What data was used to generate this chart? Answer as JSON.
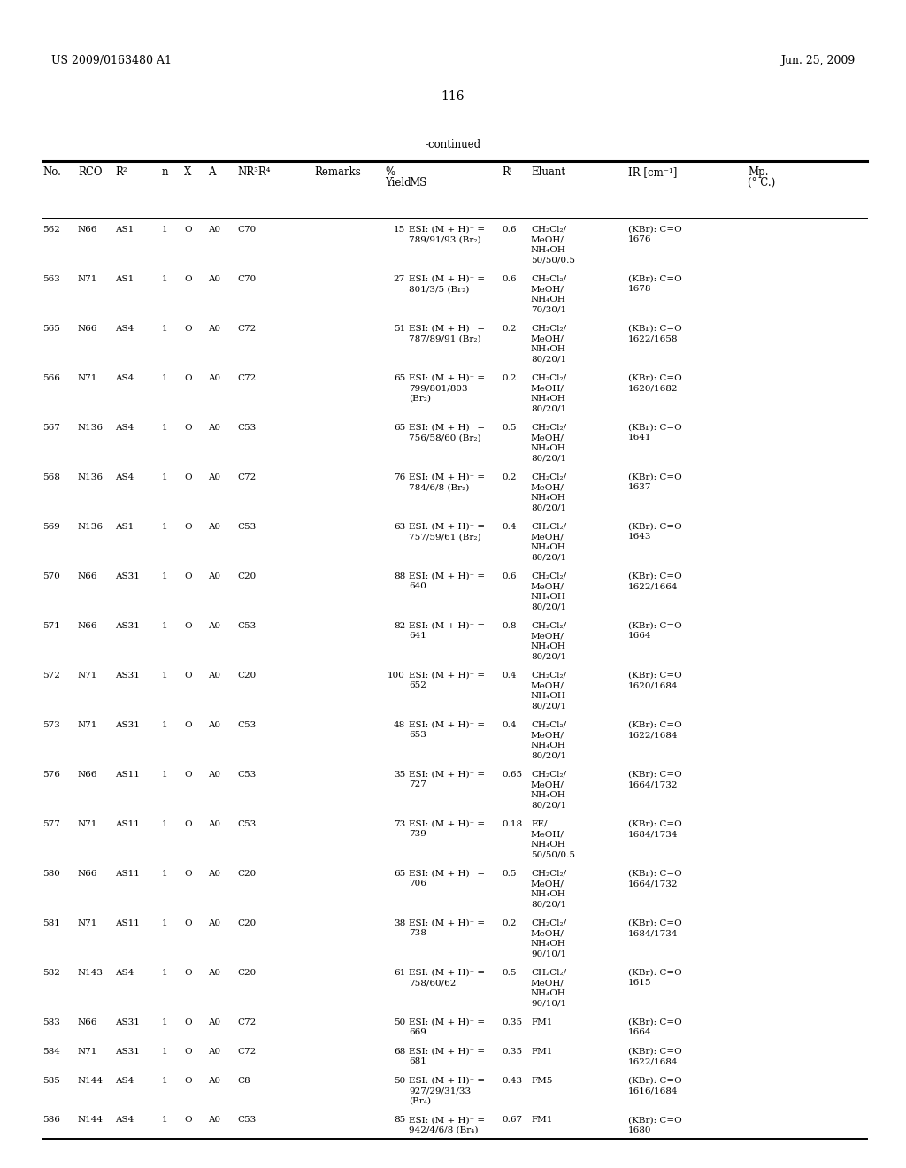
{
  "header_left": "US 2009/0163480 A1",
  "header_right": "Jun. 25, 2009",
  "page_number": "116",
  "continued_label": "-continued",
  "rows": [
    [
      "562",
      "N66",
      "AS1",
      "1",
      "O",
      "A0",
      "C70",
      "",
      "15",
      "ESI: (M + H)⁺ =\n789/91/93 (Br₂)",
      "0.6",
      "CH₂Cl₂/\nMeOH/\nNH₄OH\n50/50/0.5",
      "(KBr): C=O\n1676",
      ""
    ],
    [
      "563",
      "N71",
      "AS1",
      "1",
      "O",
      "A0",
      "C70",
      "",
      "27",
      "ESI: (M + H)⁺ =\n801/3/5 (Br₂)",
      "0.6",
      "CH₂Cl₂/\nMeOH/\nNH₄OH\n70/30/1",
      "(KBr): C=O\n1678",
      ""
    ],
    [
      "565",
      "N66",
      "AS4",
      "1",
      "O",
      "A0",
      "C72",
      "",
      "51",
      "ESI: (M + H)⁺ =\n787/89/91 (Br₂)",
      "0.2",
      "CH₂Cl₂/\nMeOH/\nNH₄OH\n80/20/1",
      "(KBr): C=O\n1622/1658",
      ""
    ],
    [
      "566",
      "N71",
      "AS4",
      "1",
      "O",
      "A0",
      "C72",
      "",
      "65",
      "ESI: (M + H)⁺ =\n799/801/803\n(Br₂)",
      "0.2",
      "CH₂Cl₂/\nMeOH/\nNH₄OH\n80/20/1",
      "(KBr): C=O\n1620/1682",
      ""
    ],
    [
      "567",
      "N136",
      "AS4",
      "1",
      "O",
      "A0",
      "C53",
      "",
      "65",
      "ESI: (M + H)⁺ =\n756/58/60 (Br₂)",
      "0.5",
      "CH₂Cl₂/\nMeOH/\nNH₄OH\n80/20/1",
      "(KBr): C=O\n1641",
      ""
    ],
    [
      "568",
      "N136",
      "AS4",
      "1",
      "O",
      "A0",
      "C72",
      "",
      "76",
      "ESI: (M + H)⁺ =\n784/6/8 (Br₂)",
      "0.2",
      "CH₂Cl₂/\nMeOH/\nNH₄OH\n80/20/1",
      "(KBr): C=O\n1637",
      ""
    ],
    [
      "569",
      "N136",
      "AS1",
      "1",
      "O",
      "A0",
      "C53",
      "",
      "63",
      "ESI: (M + H)⁺ =\n757/59/61 (Br₂)",
      "0.4",
      "CH₂Cl₂/\nMeOH/\nNH₄OH\n80/20/1",
      "(KBr): C=O\n1643",
      ""
    ],
    [
      "570",
      "N66",
      "AS31",
      "1",
      "O",
      "A0",
      "C20",
      "",
      "88",
      "ESI: (M + H)⁺ =\n640",
      "0.6",
      "CH₂Cl₂/\nMeOH/\nNH₄OH\n80/20/1",
      "(KBr): C=O\n1622/1664",
      ""
    ],
    [
      "571",
      "N66",
      "AS31",
      "1",
      "O",
      "A0",
      "C53",
      "",
      "82",
      "ESI: (M + H)⁺ =\n641",
      "0.8",
      "CH₂Cl₂/\nMeOH/\nNH₄OH\n80/20/1",
      "(KBr): C=O\n1664",
      ""
    ],
    [
      "572",
      "N71",
      "AS31",
      "1",
      "O",
      "A0",
      "C20",
      "",
      "100",
      "ESI: (M + H)⁺ =\n652",
      "0.4",
      "CH₂Cl₂/\nMeOH/\nNH₄OH\n80/20/1",
      "(KBr): C=O\n1620/1684",
      ""
    ],
    [
      "573",
      "N71",
      "AS31",
      "1",
      "O",
      "A0",
      "C53",
      "",
      "48",
      "ESI: (M + H)⁺ =\n653",
      "0.4",
      "CH₂Cl₂/\nMeOH/\nNH₄OH\n80/20/1",
      "(KBr): C=O\n1622/1684",
      ""
    ],
    [
      "576",
      "N66",
      "AS11",
      "1",
      "O",
      "A0",
      "C53",
      "",
      "35",
      "ESI: (M + H)⁺ =\n727",
      "0.65",
      "CH₂Cl₂/\nMeOH/\nNH₄OH\n80/20/1",
      "(KBr): C=O\n1664/1732",
      ""
    ],
    [
      "577",
      "N71",
      "AS11",
      "1",
      "O",
      "A0",
      "C53",
      "",
      "73",
      "ESI: (M + H)⁺ =\n739",
      "0.18",
      "EE/\nMeOH/\nNH₄OH\n50/50/0.5",
      "(KBr): C=O\n1684/1734",
      ""
    ],
    [
      "580",
      "N66",
      "AS11",
      "1",
      "O",
      "A0",
      "C20",
      "",
      "65",
      "ESI: (M + H)⁺ =\n706",
      "0.5",
      "CH₂Cl₂/\nMeOH/\nNH₄OH\n80/20/1",
      "(KBr): C=O\n1664/1732",
      ""
    ],
    [
      "581",
      "N71",
      "AS11",
      "1",
      "O",
      "A0",
      "C20",
      "",
      "38",
      "ESI: (M + H)⁺ =\n738",
      "0.2",
      "CH₂Cl₂/\nMeOH/\nNH₄OH\n90/10/1",
      "(KBr): C=O\n1684/1734",
      ""
    ],
    [
      "582",
      "N143",
      "AS4",
      "1",
      "O",
      "A0",
      "C20",
      "",
      "61",
      "ESI: (M + H)⁺ =\n758/60/62",
      "0.5",
      "CH₂Cl₂/\nMeOH/\nNH₄OH\n90/10/1",
      "(KBr): C=O\n1615",
      ""
    ],
    [
      "583",
      "N66",
      "AS31",
      "1",
      "O",
      "A0",
      "C72",
      "",
      "50",
      "ESI: (M + H)⁺ =\n669",
      "0.35",
      "FM1",
      "(KBr): C=O\n1664",
      ""
    ],
    [
      "584",
      "N71",
      "AS31",
      "1",
      "O",
      "A0",
      "C72",
      "",
      "68",
      "ESI: (M + H)⁺ =\n681",
      "0.35",
      "FM1",
      "(KBr): C=O\n1622/1684",
      ""
    ],
    [
      "585",
      "N144",
      "AS4",
      "1",
      "O",
      "A0",
      "C8",
      "",
      "50",
      "ESI: (M + H)⁺ =\n927/29/31/33\n(Br₄)",
      "0.43",
      "FM5",
      "(KBr): C=O\n1616/1684",
      ""
    ],
    [
      "586",
      "N144",
      "AS4",
      "1",
      "O",
      "A0",
      "C53",
      "",
      "85",
      "ESI: (M + H)⁺ =\n942/4/6/8 (Br₄)",
      "0.67",
      "FM1",
      "(KBr): C=O\n1680",
      ""
    ]
  ],
  "bg_color": "#ffffff",
  "text_color": "#000000",
  "font_size_header": 8.5,
  "font_size_body": 7.5,
  "font_size_page": 10,
  "font_size_title": 8.5
}
